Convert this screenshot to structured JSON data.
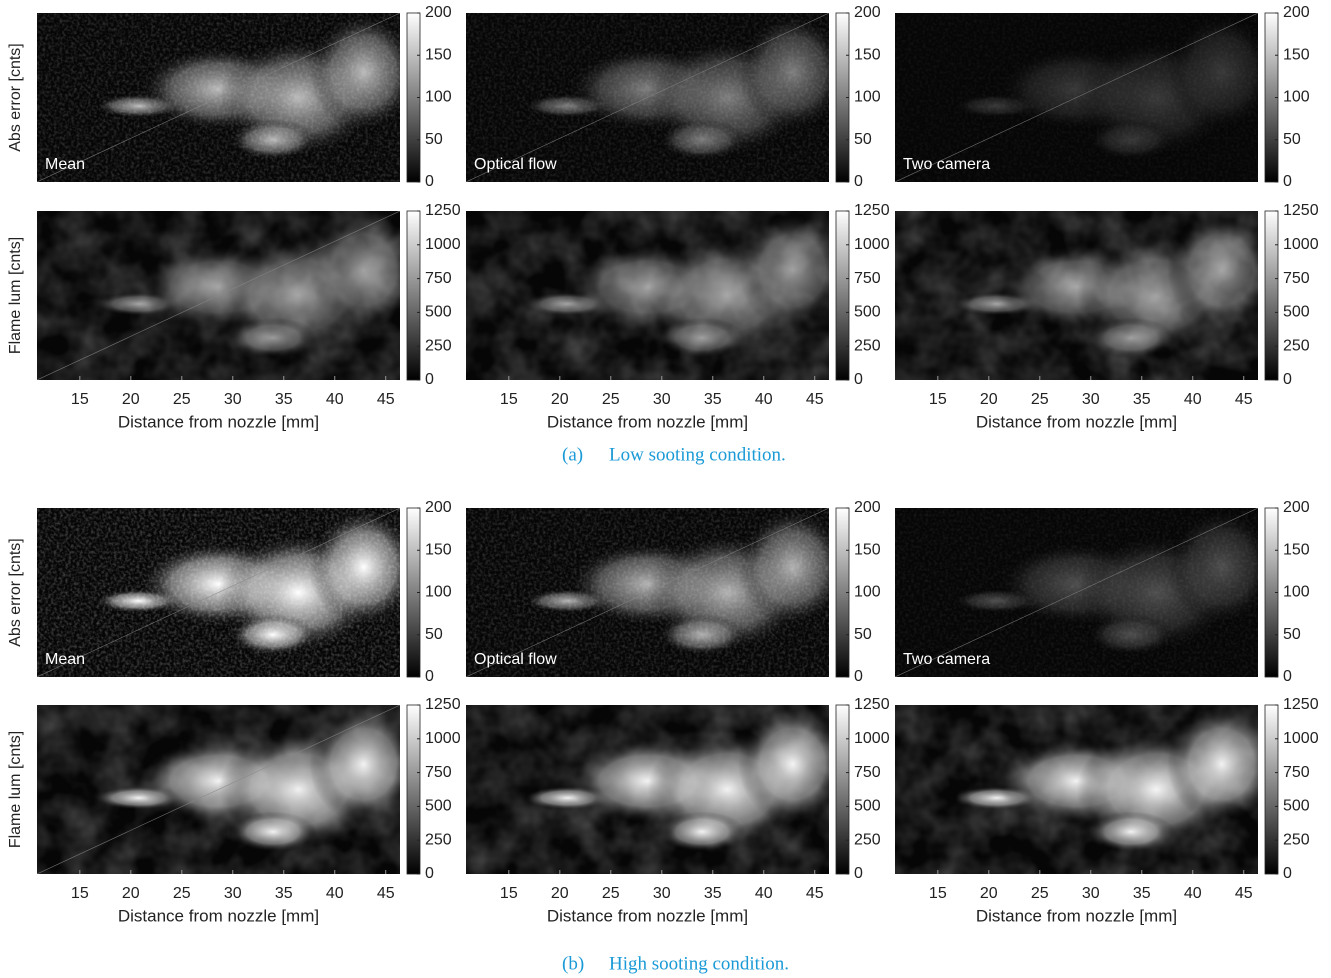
{
  "figure": {
    "xlabel": "Distance from nozzle [mm]",
    "xlim": [
      10.8,
      46.4
    ],
    "xticks": [
      15,
      20,
      25,
      30,
      35,
      40,
      45
    ],
    "columns": [
      "Mean",
      "Optical flow",
      "Two camera"
    ],
    "rows": [
      {
        "ylabel": "Abs error [cnts]",
        "clim": [
          0,
          200
        ],
        "cticks": [
          0,
          50,
          100,
          150,
          200
        ]
      },
      {
        "ylabel": "Flame lum [cnts]",
        "clim": [
          0,
          1250
        ],
        "cticks": [
          0,
          250,
          500,
          750,
          1000,
          1250
        ]
      }
    ],
    "subfigures": [
      {
        "label": "(a)",
        "caption": "Low sooting condition."
      },
      {
        "label": "(b)",
        "caption": "High sooting condition."
      }
    ]
  }
}
